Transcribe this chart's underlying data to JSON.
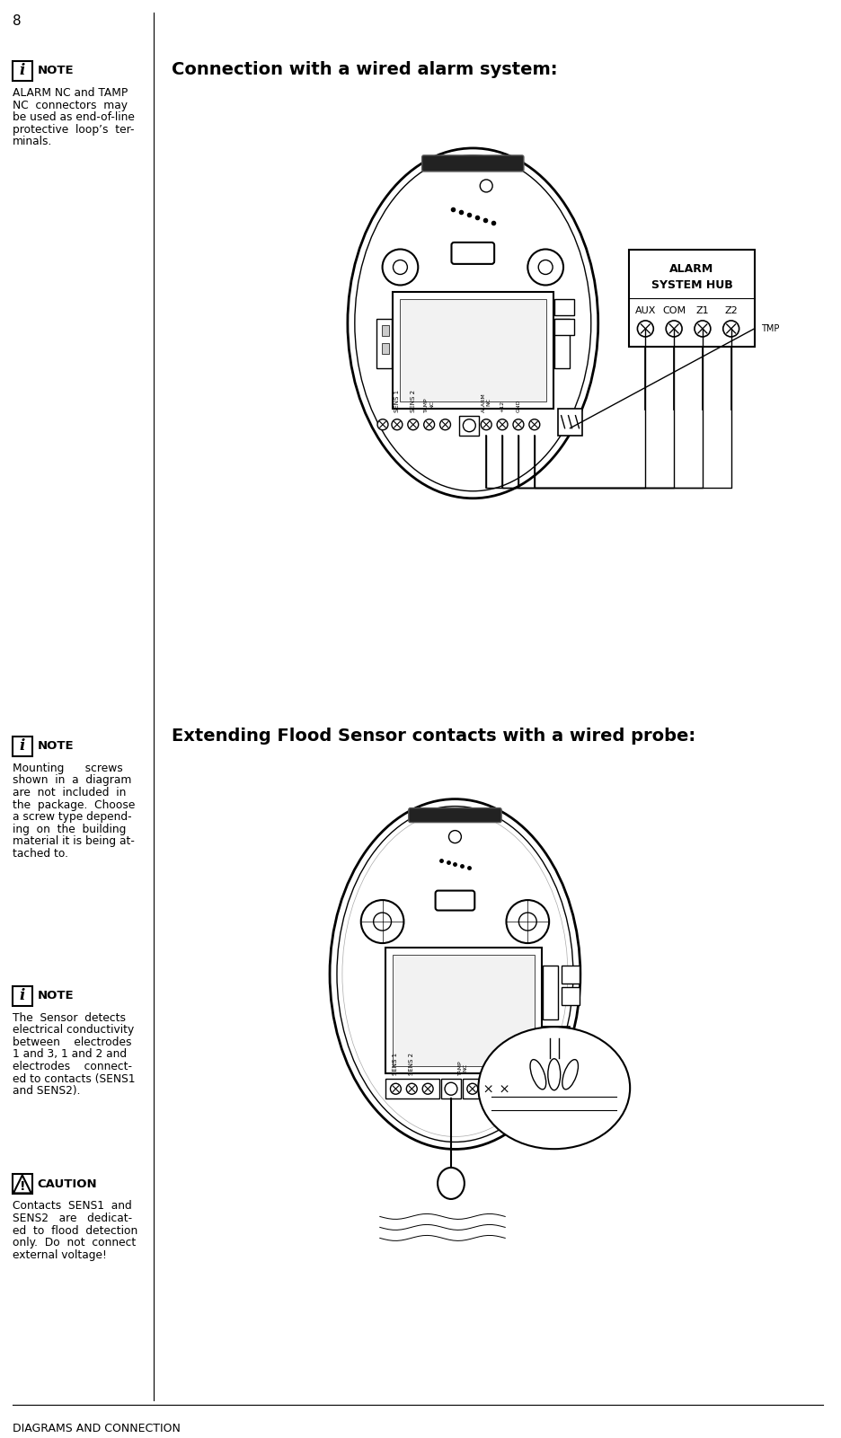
{
  "page_number": "8",
  "footer_text": "DIAGRAMS AND CONNECTION",
  "bg_color": "#ffffff",
  "text_color": "#000000",
  "note1": {
    "icon": "i",
    "title": "NOTE",
    "body": "ALARM NC and TAMP\nNC  connectors  may\nbe used as end-of-line\nprotective  loop’s  ter-\nminals."
  },
  "diagram1_title": "Connection with a wired alarm system:",
  "note2": {
    "icon": "i",
    "title": "NOTE",
    "body": "Mounting      screws\nshown  in  a  diagram\nare  not  included  in\nthe  package.  Choose\na screw type depend-\ning  on  the  building\nmaterial it is being at-\ntached to."
  },
  "note3": {
    "icon": "i",
    "title": "NOTE",
    "body": "The  Sensor  detects\nelectrical conductivity\nbetween    electrodes\n1 and 3, 1 and 2 and\nelectrodes    connect-\ned to contacts (SENS1\nand SENS2)."
  },
  "caution1": {
    "icon": "!",
    "title": "CAUTION",
    "body": "Contacts  SENS1  and\nSENS2   are   dedicat-\ned  to  flood  detection\nonly.  Do  not  connect\nexternal voltage!"
  },
  "diagram2_title": "Extending Flood Sensor contacts with a wired probe:"
}
